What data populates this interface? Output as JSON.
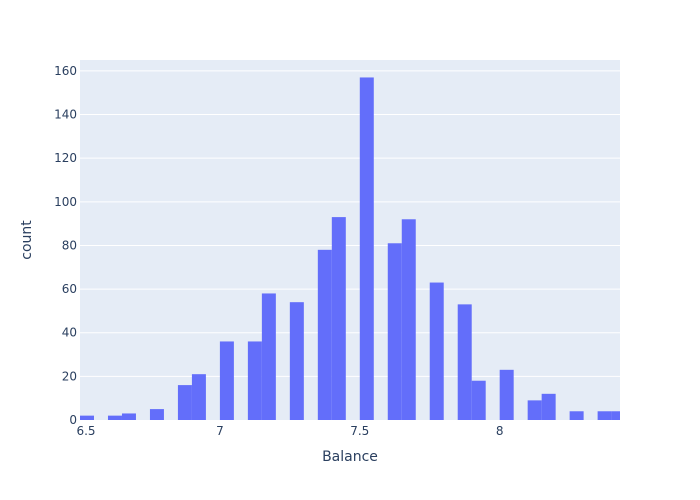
{
  "colors": {
    "plot_background": "#e5ecf6",
    "gridline": "#ffffff",
    "bar": "#636efa",
    "text": "#2a3f5f"
  },
  "chart_data": {
    "type": "bar",
    "subtype": "histogram",
    "xlabel": "Balance",
    "ylabel": "count",
    "xlim": [
      6.5,
      8.43
    ],
    "ylim": [
      0,
      165
    ],
    "bin_width": 0.05,
    "grid": "horizontal",
    "x_ticks": [
      {
        "value": 6.5,
        "label": "6.5"
      },
      {
        "value": 7,
        "label": "7"
      },
      {
        "value": 7.5,
        "label": "7.5"
      },
      {
        "value": 8,
        "label": "8"
      }
    ],
    "y_ticks": [
      {
        "value": 0,
        "label": "0"
      },
      {
        "value": 20,
        "label": "20"
      },
      {
        "value": 40,
        "label": "40"
      },
      {
        "value": 60,
        "label": "60"
      },
      {
        "value": 80,
        "label": "80"
      },
      {
        "value": 100,
        "label": "100"
      },
      {
        "value": 120,
        "label": "120"
      },
      {
        "value": 140,
        "label": "140"
      },
      {
        "value": 160,
        "label": "160"
      }
    ],
    "bins": [
      {
        "x0": 6.5,
        "x1": 6.55,
        "count": 2
      },
      {
        "x0": 6.6,
        "x1": 6.65,
        "count": 2
      },
      {
        "x0": 6.65,
        "x1": 6.7,
        "count": 3
      },
      {
        "x0": 6.75,
        "x1": 6.8,
        "count": 5
      },
      {
        "x0": 6.85,
        "x1": 6.9,
        "count": 16
      },
      {
        "x0": 6.9,
        "x1": 6.95,
        "count": 21
      },
      {
        "x0": 7.0,
        "x1": 7.05,
        "count": 36
      },
      {
        "x0": 7.1,
        "x1": 7.15,
        "count": 36
      },
      {
        "x0": 7.15,
        "x1": 7.2,
        "count": 58
      },
      {
        "x0": 7.25,
        "x1": 7.3,
        "count": 54
      },
      {
        "x0": 7.35,
        "x1": 7.4,
        "count": 78
      },
      {
        "x0": 7.4,
        "x1": 7.45,
        "count": 93
      },
      {
        "x0": 7.5,
        "x1": 7.55,
        "count": 157
      },
      {
        "x0": 7.6,
        "x1": 7.65,
        "count": 81
      },
      {
        "x0": 7.65,
        "x1": 7.7,
        "count": 92
      },
      {
        "x0": 7.75,
        "x1": 7.8,
        "count": 63
      },
      {
        "x0": 7.85,
        "x1": 7.9,
        "count": 53
      },
      {
        "x0": 7.9,
        "x1": 7.95,
        "count": 18
      },
      {
        "x0": 8.0,
        "x1": 8.05,
        "count": 23
      },
      {
        "x0": 8.1,
        "x1": 8.15,
        "count": 9
      },
      {
        "x0": 8.15,
        "x1": 8.2,
        "count": 12
      },
      {
        "x0": 8.25,
        "x1": 8.3,
        "count": 4
      },
      {
        "x0": 8.35,
        "x1": 8.4,
        "count": 4
      },
      {
        "x0": 8.4,
        "x1": 8.45,
        "count": 4
      }
    ]
  }
}
